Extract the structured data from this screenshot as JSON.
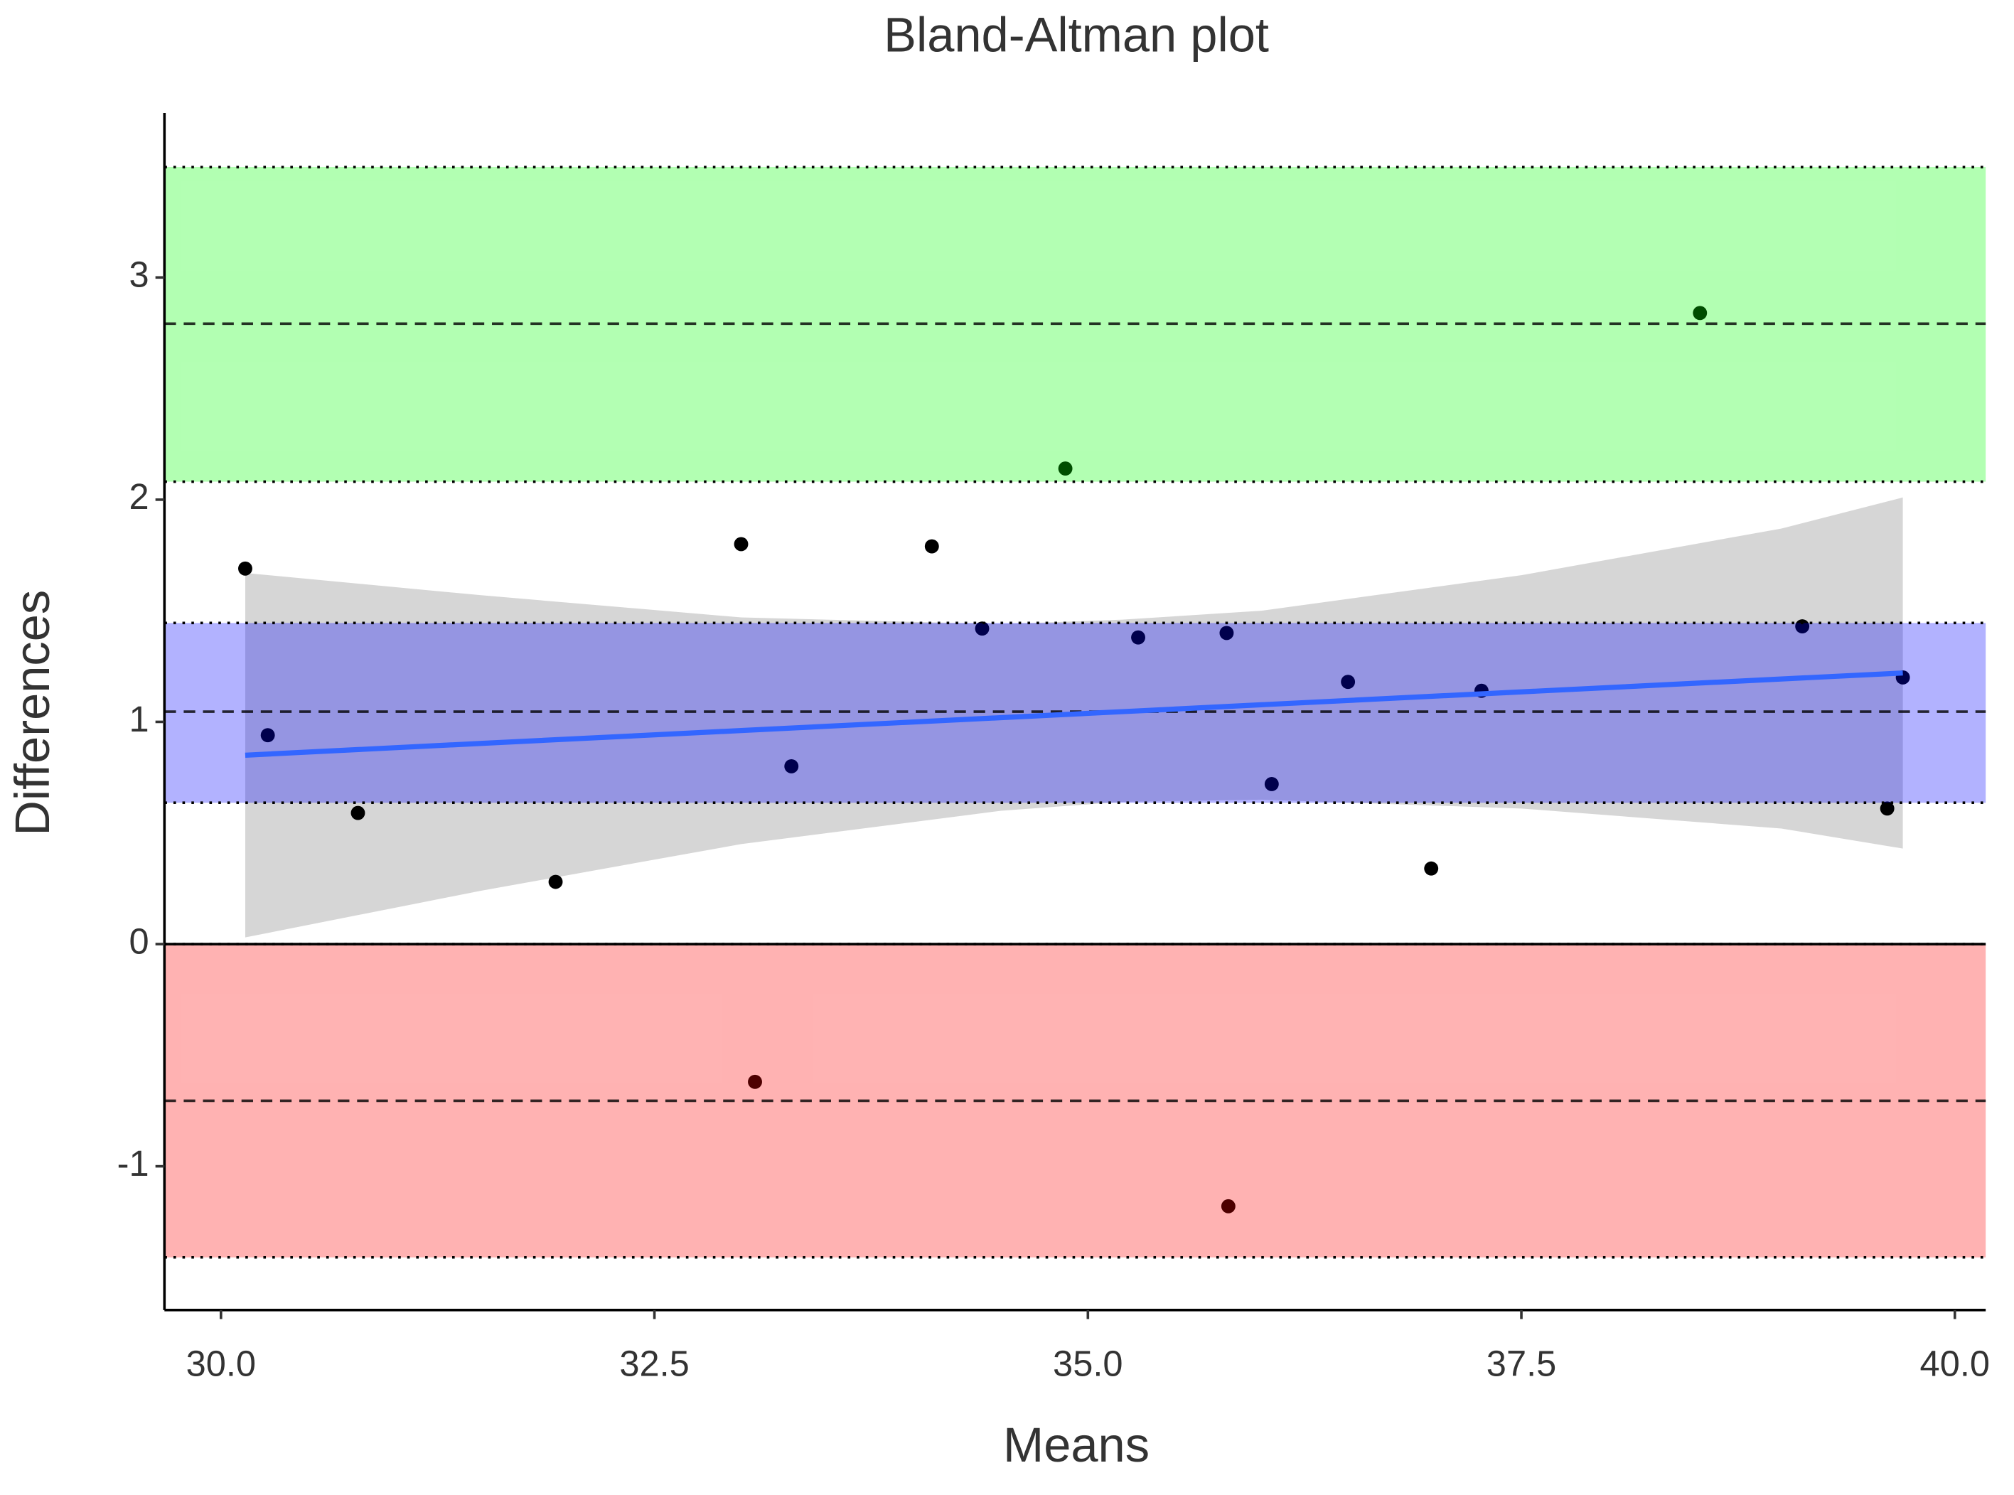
{
  "chart_data": {
    "type": "scatter",
    "title": "Bland-Altman plot",
    "x_label": "Means",
    "y_label": "Differences",
    "xlim": [
      29.674,
      40.178
    ],
    "ylim": [
      -1.647,
      3.74
    ],
    "xticks": [
      {
        "value": 30,
        "label": "30.0"
      },
      {
        "value": 32.5,
        "label": "32.5"
      },
      {
        "value": 35,
        "label": "35.0"
      },
      {
        "value": 37.5,
        "label": "37.5"
      },
      {
        "value": 40,
        "label": "40.0"
      }
    ],
    "yticks": [
      -1,
      0,
      1,
      2,
      3
    ],
    "series": [
      {
        "color": "#000000",
        "x": [
          30.14,
          30.27,
          30.79,
          31.93,
          33.0,
          33.08,
          33.29,
          34.1,
          34.39,
          34.87,
          35.29,
          35.8,
          35.81,
          36.06,
          36.5,
          36.98,
          37.27,
          38.53,
          39.12,
          39.61,
          39.7
        ],
        "values": [
          1.69,
          0.94,
          0.59,
          0.28,
          1.8,
          -0.62,
          0.8,
          1.79,
          1.42,
          2.14,
          1.38,
          1.4,
          -1.18,
          0.72,
          1.18,
          0.34,
          1.14,
          2.84,
          1.43,
          0.61,
          1.2
        ]
      }
    ],
    "bands": [
      {
        "color": "#00ff00",
        "lower": 2.081,
        "mean": 2.792,
        "upper": 3.497
      },
      {
        "color": "#0000ff",
        "lower": 0.636,
        "mean": 1.046,
        "upper": 1.445
      },
      {
        "color": "#ff0000",
        "lower": -1.41,
        "mean": -0.705,
        "upper": 0
      }
    ],
    "zero_line": 0,
    "fit": {
      "color": "#3366ff",
      "ribbon_color": "#999999",
      "x": [
        30.14,
        31.5,
        33,
        34.5,
        35.2,
        36,
        37.5,
        39,
        39.7
      ],
      "values": [
        0.85,
        0.903,
        0.961,
        1.019,
        1.046,
        1.077,
        1.135,
        1.193,
        1.22
      ],
      "lower": [
        0.03,
        0.24,
        0.45,
        0.6,
        0.64,
        0.65,
        0.61,
        0.52,
        0.43
      ],
      "upper": [
        1.67,
        1.57,
        1.47,
        1.44,
        1.46,
        1.5,
        1.66,
        1.87,
        2.01
      ]
    }
  }
}
